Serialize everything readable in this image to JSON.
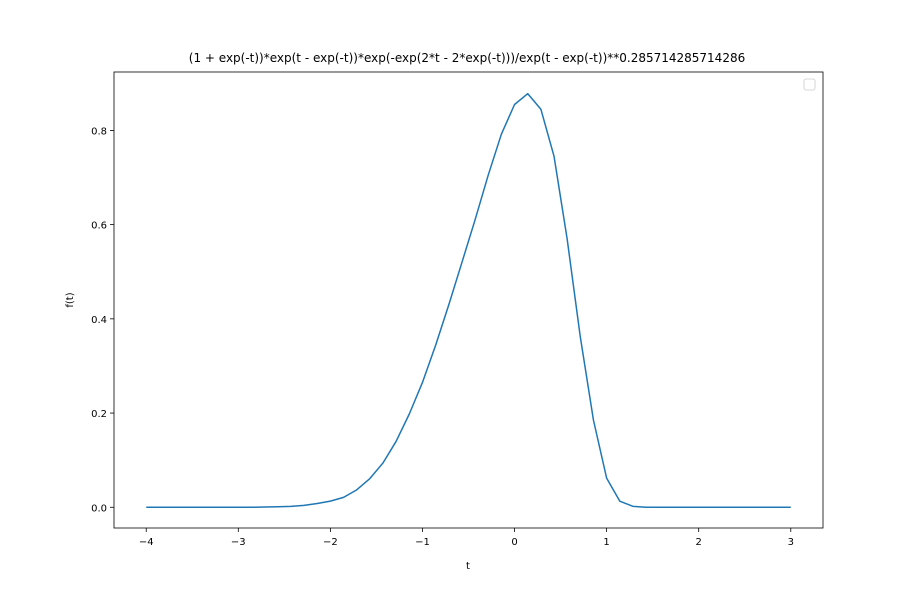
{
  "chart_data": {
    "type": "line",
    "title": "(1 + exp(-t))*exp(t - exp(-t))*exp(-exp(2*t - 2*exp(-t)))/exp(t - exp(-t))**0.285714285714286",
    "xlabel": "t",
    "ylabel": "f(t)",
    "xlim": [
      -4.35,
      3.35
    ],
    "ylim": [
      -0.044,
      0.924
    ],
    "x_ticks": [
      -4,
      -3,
      -2,
      -1,
      0,
      1,
      2,
      3
    ],
    "x_tick_labels": [
      "−4",
      "−3",
      "−2",
      "−1",
      "0",
      "1",
      "2",
      "3"
    ],
    "y_ticks": [
      0.0,
      0.2,
      0.4,
      0.6,
      0.8
    ],
    "y_tick_labels": [
      "0.0",
      "0.2",
      "0.4",
      "0.6",
      "0.8"
    ],
    "grid": false,
    "legend": "top-right (empty)",
    "color": "#1f77b4",
    "series": [
      {
        "x": [
          -4.0,
          -3.857,
          -3.714,
          -3.571,
          -3.429,
          -3.286,
          -3.143,
          -3.0,
          -2.857,
          -2.714,
          -2.571,
          -2.429,
          -2.286,
          -2.143,
          -2.0,
          -1.857,
          -1.714,
          -1.571,
          -1.429,
          -1.286,
          -1.143,
          -1.0,
          -0.857,
          -0.714,
          -0.571,
          -0.429,
          -0.286,
          -0.143,
          0.0,
          0.143,
          0.286,
          0.429,
          0.571,
          0.714,
          0.857,
          1.0,
          1.143,
          1.286,
          1.429,
          1.571,
          1.714,
          1.857,
          2.0,
          2.143,
          2.286,
          2.429,
          2.571,
          2.714,
          2.857,
          3.0
        ],
        "y": [
          0.0,
          0.0,
          0.0,
          0.0,
          0.0,
          0.0,
          0.0,
          0.0,
          0.0,
          0.0005,
          0.001,
          0.002,
          0.004,
          0.008,
          0.013,
          0.021,
          0.037,
          0.061,
          0.094,
          0.14,
          0.198,
          0.265,
          0.344,
          0.43,
          0.52,
          0.61,
          0.705,
          0.792,
          0.855,
          0.878,
          0.845,
          0.745,
          0.57,
          0.362,
          0.185,
          0.062,
          0.013,
          0.002,
          0.0,
          0.0,
          0.0,
          0.0,
          0.0,
          0.0,
          0.0,
          0.0,
          0.0,
          0.0,
          0.0,
          0.0
        ]
      }
    ]
  }
}
